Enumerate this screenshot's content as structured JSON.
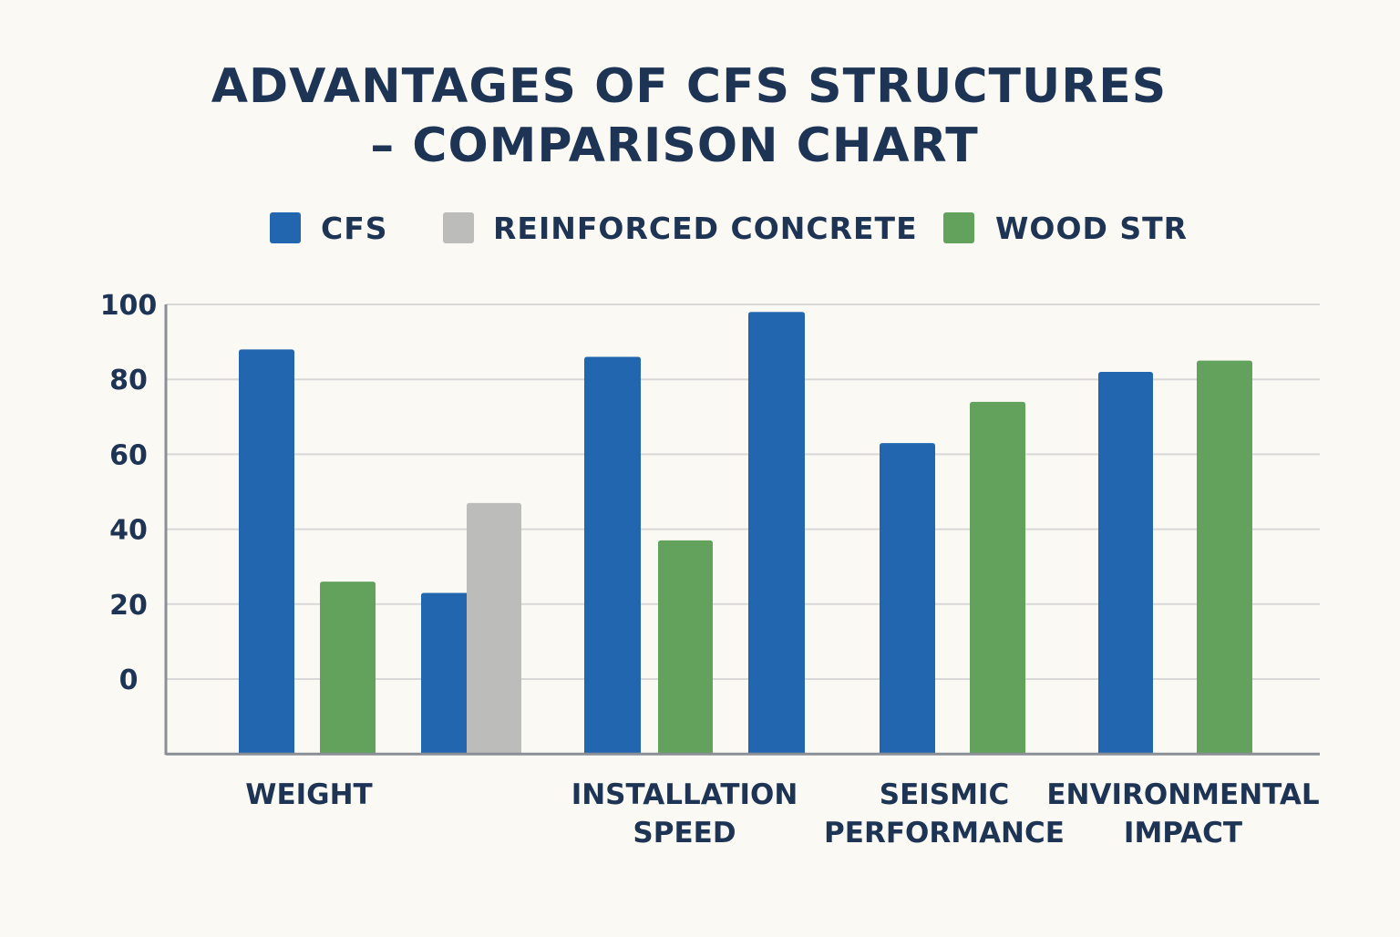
{
  "chart_data": {
    "type": "bar",
    "title": "ADVANTAGES OF CFS STRUCTURES",
    "subtitle": "– COMPARISON CHART",
    "legend": [
      {
        "name": "CFS",
        "color": "#2266b0"
      },
      {
        "name": "REINFORCED CONCRETE",
        "color": "#bcbcbb"
      },
      {
        "name": "WOOD STR",
        "color": "#62a25c"
      }
    ],
    "legend_position": "top",
    "grid": true,
    "ylim": [
      -20,
      100
    ],
    "yticks": [
      "100",
      "80",
      "60",
      "40",
      "20",
      "0"
    ],
    "ytick_values": [
      100,
      80,
      60,
      40,
      20,
      0
    ],
    "categories": [
      {
        "lines": [
          "WEIGHT"
        ]
      },
      {
        "lines": [
          "INSTALLATION",
          "SPEED"
        ]
      },
      {
        "lines": [
          "SEISMIC",
          "PERFORMANCE"
        ]
      },
      {
        "lines": [
          "ENVIRONMENTAL",
          "IMPACT"
        ]
      }
    ],
    "bars": [
      {
        "series": "CFS",
        "value": 88
      },
      {
        "series": "WOOD STR",
        "value": 26
      },
      {
        "series": "CFS",
        "value": 23
      },
      {
        "series": "REINFORCED CONCRETE",
        "value": 47
      },
      {
        "series": "CFS",
        "value": 86
      },
      {
        "series": "WOOD STR",
        "value": 37
      },
      {
        "series": "CFS",
        "value": 98
      },
      {
        "series": "CFS",
        "value": 63
      },
      {
        "series": "WOOD STR",
        "value": 74
      },
      {
        "series": "CFS",
        "value": 82
      },
      {
        "series": "WOOD STR",
        "value": 85
      }
    ],
    "colors": {
      "CFS": "#2266b0",
      "REINFORCED CONCRETE": "#bcbcbb",
      "WOOD STR": "#62a25c",
      "grid": "#d8d8d8",
      "axis": "#8a8f96",
      "text": "#1d3454",
      "background": "#fbf9f4"
    }
  }
}
